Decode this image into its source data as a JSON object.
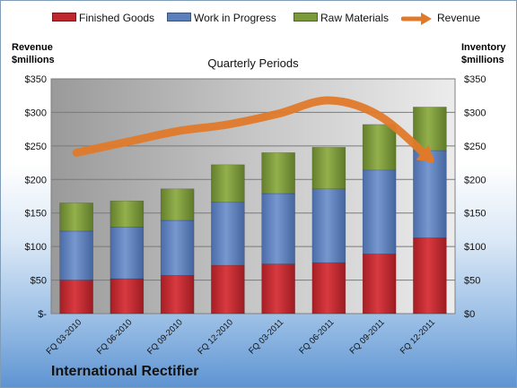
{
  "chart_data": {
    "type": "bar",
    "stacked": true,
    "title": "Quarterly Periods",
    "categories": [
      "FQ 03-2010",
      "FQ 06-2010",
      "FQ 09-2010",
      "FQ 12-2010",
      "FQ 03-2011",
      "FQ 06-2011",
      "FQ 09-2011",
      "FQ 12-2011"
    ],
    "series": [
      {
        "name": "Finished Goods",
        "color": "#c0262d",
        "axis": "right",
        "values": [
          50,
          52,
          57,
          72,
          74,
          76,
          89,
          113
        ]
      },
      {
        "name": "Work in Progress",
        "color": "#5b7fbc",
        "axis": "right",
        "values": [
          73,
          77,
          82,
          94,
          105,
          110,
          125,
          130
        ]
      },
      {
        "name": "Raw Materials",
        "color": "#7a9a3a",
        "axis": "right",
        "values": [
          42,
          39,
          47,
          56,
          61,
          62,
          68,
          65
        ]
      }
    ],
    "line_series": {
      "name": "Revenue",
      "color": "#e07a2a",
      "axis": "left",
      "values": [
        240,
        256,
        272,
        282,
        298,
        318,
        295,
        231
      ]
    },
    "left_axis": {
      "label": "Revenue\n$millions",
      "ylim": [
        0,
        350
      ],
      "ticks": [
        "$-",
        "$50",
        "$100",
        "$150",
        "$200",
        "$250",
        "$300",
        "$350"
      ]
    },
    "right_axis": {
      "label": "Inventory\n$millions",
      "ylim": [
        0,
        350
      ],
      "ticks": [
        "$0",
        "$50",
        "$100",
        "$150",
        "$200",
        "$250",
        "$300",
        "$350"
      ]
    },
    "grid": true,
    "legend_position": "top"
  },
  "footer_text": "International Rectifier"
}
